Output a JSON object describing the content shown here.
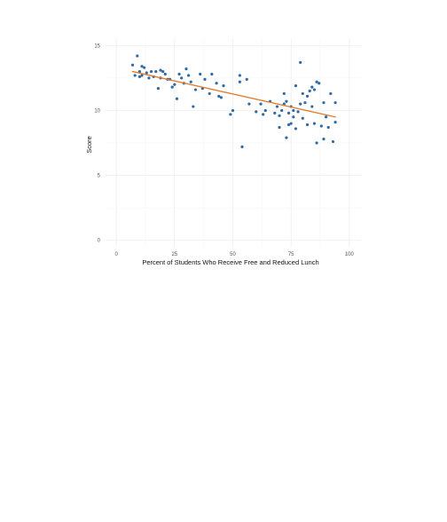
{
  "chart_data": {
    "type": "scatter",
    "title": "",
    "xlabel": "Percent of Students Who Receive Free and Reduced Lunch",
    "ylabel": "Score",
    "xlim": [
      -5,
      105
    ],
    "ylim": [
      -0.5,
      15.5
    ],
    "x_ticks": [
      0,
      25,
      50,
      75,
      100
    ],
    "y_ticks": [
      0,
      5,
      10,
      15
    ],
    "grid": true,
    "legend": "none",
    "point_color": "#2e6aa8",
    "fit_color": "#e07b2a",
    "fit_line": {
      "x": [
        7,
        94
      ],
      "y": [
        13.0,
        9.5
      ]
    },
    "points": [
      {
        "x": 7,
        "y": 13.5
      },
      {
        "x": 8,
        "y": 12.7
      },
      {
        "x": 9,
        "y": 14.2
      },
      {
        "x": 10,
        "y": 12.6
      },
      {
        "x": 10,
        "y": 13.0
      },
      {
        "x": 11,
        "y": 13.4
      },
      {
        "x": 11,
        "y": 12.7
      },
      {
        "x": 12,
        "y": 13.3
      },
      {
        "x": 13,
        "y": 12.9
      },
      {
        "x": 14,
        "y": 12.5
      },
      {
        "x": 15,
        "y": 13.0
      },
      {
        "x": 16,
        "y": 12.6
      },
      {
        "x": 17,
        "y": 13.0
      },
      {
        "x": 18,
        "y": 11.7
      },
      {
        "x": 19,
        "y": 13.1
      },
      {
        "x": 19,
        "y": 12.5
      },
      {
        "x": 20,
        "y": 13.0
      },
      {
        "x": 21,
        "y": 12.8
      },
      {
        "x": 22,
        "y": 12.4
      },
      {
        "x": 23,
        "y": 12.4
      },
      {
        "x": 24,
        "y": 11.8
      },
      {
        "x": 25,
        "y": 12.0
      },
      {
        "x": 26,
        "y": 10.9
      },
      {
        "x": 27,
        "y": 12.8
      },
      {
        "x": 28,
        "y": 12.5
      },
      {
        "x": 29,
        "y": 12.1
      },
      {
        "x": 30,
        "y": 13.2
      },
      {
        "x": 31,
        "y": 12.7
      },
      {
        "x": 32,
        "y": 12.2
      },
      {
        "x": 33,
        "y": 10.3
      },
      {
        "x": 34,
        "y": 11.6
      },
      {
        "x": 36,
        "y": 12.8
      },
      {
        "x": 37,
        "y": 11.7
      },
      {
        "x": 38,
        "y": 12.4
      },
      {
        "x": 40,
        "y": 11.3
      },
      {
        "x": 41,
        "y": 12.8
      },
      {
        "x": 43,
        "y": 12.1
      },
      {
        "x": 44,
        "y": 11.1
      },
      {
        "x": 45,
        "y": 11.0
      },
      {
        "x": 46,
        "y": 11.9
      },
      {
        "x": 49,
        "y": 9.7
      },
      {
        "x": 50,
        "y": 10.0
      },
      {
        "x": 53,
        "y": 12.7
      },
      {
        "x": 53,
        "y": 12.2
      },
      {
        "x": 54,
        "y": 7.2
      },
      {
        "x": 56,
        "y": 12.4
      },
      {
        "x": 57,
        "y": 10.5
      },
      {
        "x": 60,
        "y": 9.9
      },
      {
        "x": 62,
        "y": 10.5
      },
      {
        "x": 63,
        "y": 9.7
      },
      {
        "x": 64,
        "y": 10.0
      },
      {
        "x": 66,
        "y": 10.7
      },
      {
        "x": 68,
        "y": 9.8
      },
      {
        "x": 69,
        "y": 10.3
      },
      {
        "x": 70,
        "y": 8.7
      },
      {
        "x": 70,
        "y": 9.6
      },
      {
        "x": 71,
        "y": 10.0
      },
      {
        "x": 72,
        "y": 11.3
      },
      {
        "x": 72,
        "y": 10.5
      },
      {
        "x": 73,
        "y": 10.7
      },
      {
        "x": 73,
        "y": 7.9
      },
      {
        "x": 74,
        "y": 9.8
      },
      {
        "x": 74,
        "y": 8.9
      },
      {
        "x": 75,
        "y": 10.3
      },
      {
        "x": 75,
        "y": 9.0
      },
      {
        "x": 76,
        "y": 10.0
      },
      {
        "x": 76,
        "y": 9.5
      },
      {
        "x": 77,
        "y": 11.9
      },
      {
        "x": 77,
        "y": 8.6
      },
      {
        "x": 78,
        "y": 9.9
      },
      {
        "x": 79,
        "y": 13.7
      },
      {
        "x": 79,
        "y": 10.5
      },
      {
        "x": 80,
        "y": 11.3
      },
      {
        "x": 80,
        "y": 9.4
      },
      {
        "x": 81,
        "y": 10.6
      },
      {
        "x": 82,
        "y": 11.1
      },
      {
        "x": 82,
        "y": 8.9
      },
      {
        "x": 83,
        "y": 11.5
      },
      {
        "x": 84,
        "y": 10.3
      },
      {
        "x": 84,
        "y": 11.8
      },
      {
        "x": 85,
        "y": 9.0
      },
      {
        "x": 85,
        "y": 11.6
      },
      {
        "x": 86,
        "y": 12.2
      },
      {
        "x": 86,
        "y": 7.5
      },
      {
        "x": 87,
        "y": 12.1
      },
      {
        "x": 88,
        "y": 8.8
      },
      {
        "x": 89,
        "y": 10.6
      },
      {
        "x": 89,
        "y": 7.8
      },
      {
        "x": 90,
        "y": 9.5
      },
      {
        "x": 91,
        "y": 8.7
      },
      {
        "x": 92,
        "y": 11.3
      },
      {
        "x": 93,
        "y": 7.6
      },
      {
        "x": 94,
        "y": 10.6
      },
      {
        "x": 94,
        "y": 9.1
      }
    ]
  }
}
